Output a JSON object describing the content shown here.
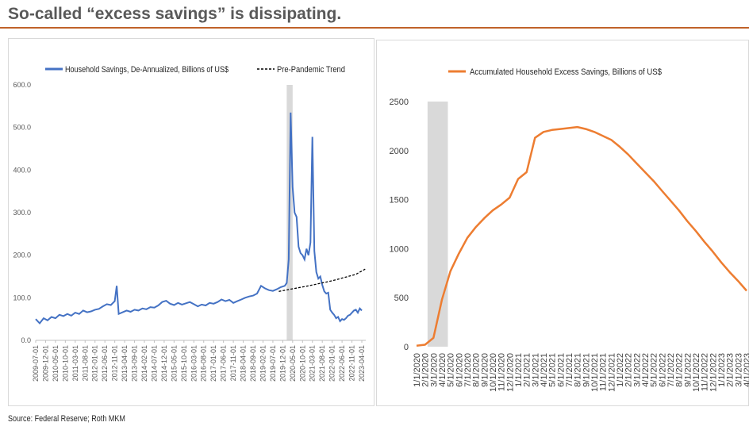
{
  "title": "So-called “excess savings” is dissipating.",
  "source": "Source: Federal Reserve; Roth MKM",
  "colors": {
    "accent": "#c0622a",
    "blue_series": "#4472c4",
    "orange_series": "#ed7d31",
    "shade": "#d9d9d9"
  },
  "chart_data": [
    {
      "type": "line",
      "title": "",
      "xlabel": "",
      "ylabel": "",
      "ylim": [
        0,
        600
      ],
      "y_ticks": [
        "0.0",
        "100.0",
        "200.0",
        "300.0",
        "400.0",
        "500.0",
        "600.0"
      ],
      "x_ticks": [
        "2009-07-01",
        "2009-12-01",
        "2010-05-01",
        "2010-10-01",
        "2011-03-01",
        "2011-08-01",
        "2012-01-01",
        "2012-06-01",
        "2012-11-01",
        "2013-04-01",
        "2013-09-01",
        "2014-02-01",
        "2014-07-01",
        "2014-12-01",
        "2015-05-01",
        "2015-10-01",
        "2016-03-01",
        "2016-08-01",
        "2017-01-01",
        "2017-06-01",
        "2017-11-01",
        "2018-04-01",
        "2018-09-01",
        "2019-02-01",
        "2019-07-01",
        "2019-12-01",
        "2020-05-01",
        "2020-10-01",
        "2021-03-01",
        "2021-08-01",
        "2022-01-01",
        "2022-06-01",
        "2022-11-01",
        "2023-04-01"
      ],
      "x_range": [
        "2009-07-01",
        "2023-06-01"
      ],
      "shaded_period": [
        "2020-02-01",
        "2020-05-01"
      ],
      "legend_position": "top",
      "grid": false,
      "series": [
        {
          "name": "Household Savings, De-Annualized, Billions of US$",
          "style": "solid",
          "points": [
            [
              "2009-07-01",
              50
            ],
            [
              "2009-09-01",
              40
            ],
            [
              "2009-11-01",
              52
            ],
            [
              "2010-01-01",
              47
            ],
            [
              "2010-03-01",
              55
            ],
            [
              "2010-05-01",
              52
            ],
            [
              "2010-07-01",
              60
            ],
            [
              "2010-09-01",
              57
            ],
            [
              "2010-11-01",
              62
            ],
            [
              "2011-01-01",
              58
            ],
            [
              "2011-03-01",
              65
            ],
            [
              "2011-05-01",
              62
            ],
            [
              "2011-07-01",
              70
            ],
            [
              "2011-09-01",
              66
            ],
            [
              "2011-11-01",
              68
            ],
            [
              "2012-01-01",
              72
            ],
            [
              "2012-03-01",
              74
            ],
            [
              "2012-05-01",
              80
            ],
            [
              "2012-07-01",
              85
            ],
            [
              "2012-09-01",
              83
            ],
            [
              "2012-11-01",
              92
            ],
            [
              "2012-12-01",
              128
            ],
            [
              "2013-01-01",
              62
            ],
            [
              "2013-03-01",
              66
            ],
            [
              "2013-05-01",
              70
            ],
            [
              "2013-07-01",
              67
            ],
            [
              "2013-09-01",
              72
            ],
            [
              "2013-11-01",
              70
            ],
            [
              "2014-01-01",
              75
            ],
            [
              "2014-03-01",
              73
            ],
            [
              "2014-05-01",
              78
            ],
            [
              "2014-07-01",
              77
            ],
            [
              "2014-09-01",
              82
            ],
            [
              "2014-11-01",
              90
            ],
            [
              "2015-01-01",
              93
            ],
            [
              "2015-03-01",
              86
            ],
            [
              "2015-05-01",
              83
            ],
            [
              "2015-07-01",
              88
            ],
            [
              "2015-09-01",
              84
            ],
            [
              "2015-11-01",
              87
            ],
            [
              "2016-01-01",
              90
            ],
            [
              "2016-03-01",
              85
            ],
            [
              "2016-05-01",
              80
            ],
            [
              "2016-07-01",
              84
            ],
            [
              "2016-09-01",
              82
            ],
            [
              "2016-11-01",
              88
            ],
            [
              "2017-01-01",
              86
            ],
            [
              "2017-03-01",
              90
            ],
            [
              "2017-05-01",
              96
            ],
            [
              "2017-07-01",
              92
            ],
            [
              "2017-09-01",
              95
            ],
            [
              "2017-11-01",
              88
            ],
            [
              "2018-01-01",
              92
            ],
            [
              "2018-03-01",
              96
            ],
            [
              "2018-05-01",
              100
            ],
            [
              "2018-07-01",
              103
            ],
            [
              "2018-09-01",
              105
            ],
            [
              "2018-11-01",
              110
            ],
            [
              "2019-01-01",
              128
            ],
            [
              "2019-03-01",
              122
            ],
            [
              "2019-05-01",
              118
            ],
            [
              "2019-07-01",
              116
            ],
            [
              "2019-09-01",
              120
            ],
            [
              "2019-11-01",
              125
            ],
            [
              "2020-01-01",
              128
            ],
            [
              "2020-02-01",
              135
            ],
            [
              "2020-03-01",
              190
            ],
            [
              "2020-04-01",
              535
            ],
            [
              "2020-05-01",
              360
            ],
            [
              "2020-06-01",
              300
            ],
            [
              "2020-07-01",
              290
            ],
            [
              "2020-08-01",
              220
            ],
            [
              "2020-09-01",
              205
            ],
            [
              "2020-10-01",
              200
            ],
            [
              "2020-11-01",
              190
            ],
            [
              "2020-12-01",
              215
            ],
            [
              "2021-01-01",
              200
            ],
            [
              "2021-02-01",
              230
            ],
            [
              "2021-03-01",
              478
            ],
            [
              "2021-04-01",
              210
            ],
            [
              "2021-05-01",
              160
            ],
            [
              "2021-06-01",
              145
            ],
            [
              "2021-07-01",
              150
            ],
            [
              "2021-08-01",
              130
            ],
            [
              "2021-09-01",
              115
            ],
            [
              "2021-10-01",
              110
            ],
            [
              "2021-11-01",
              112
            ],
            [
              "2021-12-01",
              72
            ],
            [
              "2022-01-01",
              65
            ],
            [
              "2022-02-01",
              60
            ],
            [
              "2022-03-01",
              52
            ],
            [
              "2022-04-01",
              55
            ],
            [
              "2022-05-01",
              45
            ],
            [
              "2022-06-01",
              50
            ],
            [
              "2022-07-01",
              48
            ],
            [
              "2022-08-01",
              52
            ],
            [
              "2022-09-01",
              58
            ],
            [
              "2022-10-01",
              60
            ],
            [
              "2022-11-01",
              65
            ],
            [
              "2022-12-01",
              70
            ],
            [
              "2023-01-01",
              72
            ],
            [
              "2023-02-01",
              65
            ],
            [
              "2023-03-01",
              75
            ],
            [
              "2023-04-01",
              70
            ]
          ]
        },
        {
          "name": "Pre-Pandemic Trend",
          "style": "dashed",
          "points": [
            [
              "2019-10-01",
              115
            ],
            [
              "2021-01-01",
              128
            ],
            [
              "2022-01-01",
              140
            ],
            [
              "2023-01-01",
              155
            ],
            [
              "2023-06-01",
              168
            ]
          ]
        }
      ]
    },
    {
      "type": "line",
      "title": "",
      "xlabel": "",
      "ylabel": "",
      "ylim": [
        0,
        2500
      ],
      "y_ticks": [
        "0",
        "500",
        "1000",
        "1500",
        "2000",
        "2500"
      ],
      "categories": [
        "1/1/2020",
        "2/1/2020",
        "3/1/2020",
        "4/1/2020",
        "5/1/2020",
        "6/1/2020",
        "7/1/2020",
        "8/1/2020",
        "9/1/2020",
        "10/1/2020",
        "11/1/2020",
        "12/1/2020",
        "1/1/2021",
        "2/1/2021",
        "3/1/2021",
        "4/1/2021",
        "5/1/2021",
        "6/1/2021",
        "7/1/2021",
        "8/1/2021",
        "9/1/2021",
        "10/1/2021",
        "11/1/2021",
        "12/1/2021",
        "1/1/2022",
        "2/1/2022",
        "3/1/2022",
        "4/1/2022",
        "5/1/2022",
        "6/1/2022",
        "7/1/2022",
        "8/1/2022",
        "9/1/2022",
        "10/1/2022",
        "11/1/2022",
        "12/1/2022",
        "1/1/2023",
        "2/1/2023",
        "3/1/2023",
        "4/1/2023"
      ],
      "shaded_period": [
        "2/1/2020",
        "4/1/2020"
      ],
      "legend_position": "top",
      "grid": false,
      "series": [
        {
          "name": "Accumulated Household Excess Savings, Billions of US$",
          "values": [
            10,
            20,
            90,
            480,
            770,
            950,
            1110,
            1220,
            1310,
            1390,
            1450,
            1520,
            1710,
            1780,
            2130,
            2190,
            2210,
            2220,
            2230,
            2240,
            2220,
            2190,
            2150,
            2110,
            2040,
            1960,
            1870,
            1780,
            1690,
            1590,
            1490,
            1390,
            1280,
            1180,
            1070,
            970,
            860,
            760,
            670,
            570
          ]
        }
      ]
    }
  ]
}
